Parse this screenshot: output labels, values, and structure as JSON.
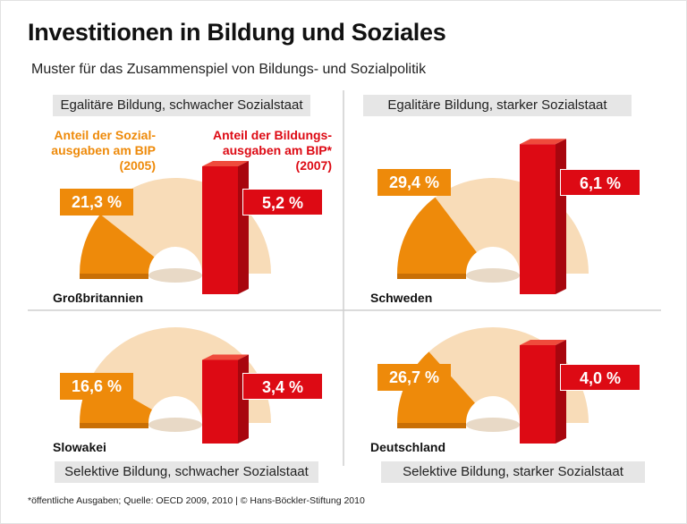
{
  "title": "Investitionen in Bildung und Soziales",
  "subtitle": "Muster für das Zusammenspiel von Bildungs- und Sozialpolitik",
  "legend": {
    "social": "Anteil der Sozial-\nausgaben am BIP\n(2005)",
    "education": "Anteil der Bildungs-\nausgaben am BIP*\n(2007)"
  },
  "footnote": "*öffentliche Ausgaben; Quelle: OECD 2009, 2010 | © Hans-Böckler-Stiftung 2010",
  "colors": {
    "social": "#ee8a0a",
    "social_rest": "#f8dcb8",
    "education": "#dd0a14",
    "label_bg": "#e6e6e6"
  },
  "chart_data": {
    "type": "bar",
    "series": [
      {
        "name": "Anteil der Sozialausgaben am BIP (2005)",
        "unit": "%"
      },
      {
        "name": "Anteil der Bildungsausgaben am BIP* (2007)",
        "unit": "%"
      }
    ],
    "quadrants": [
      {
        "pattern": "Egalitäre Bildung, schwacher Sozialstaat",
        "country": "Großbritannien",
        "social": 21.3,
        "social_label": "21,3 %",
        "education": 5.2,
        "education_label": "5,2 %"
      },
      {
        "pattern": "Egalitäre Bildung, starker Sozialstaat",
        "country": "Schweden",
        "social": 29.4,
        "social_label": "29,4 %",
        "education": 6.1,
        "education_label": "6,1 %"
      },
      {
        "pattern": "Selektive Bildung, schwacher Sozialstaat",
        "country": "Slowakei",
        "social": 16.6,
        "social_label": "16,6 %",
        "education": 3.4,
        "education_label": "3,4 %"
      },
      {
        "pattern": "Selektive Bildung, starker Sozialstaat",
        "country": "Deutschland",
        "social": 26.7,
        "social_label": "26,7 %",
        "education": 4.0,
        "education_label": "4,0 %"
      }
    ]
  }
}
